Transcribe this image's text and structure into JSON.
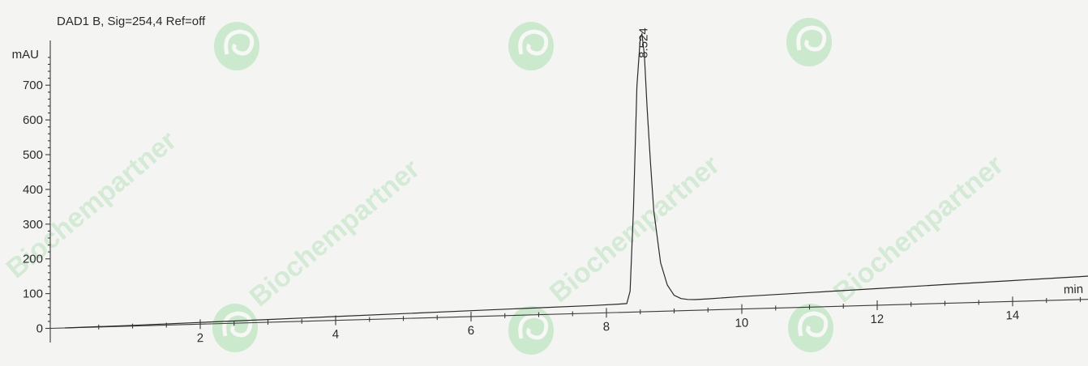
{
  "chart_data": {
    "type": "line",
    "title": "DAD1 B, Sig=254,4 Ref=off",
    "xlabel": "min",
    "ylabel": "mAU",
    "xlim": [
      0,
      15.3
    ],
    "ylim": [
      -30,
      810
    ],
    "x_ticks": [
      2,
      4,
      6,
      8,
      10,
      12,
      14
    ],
    "y_ticks": [
      0,
      100,
      200,
      300,
      400,
      500,
      600,
      700
    ],
    "series": [
      {
        "x": [
          0,
          1,
          2,
          3,
          4,
          5,
          6,
          7,
          7.8,
          8.2,
          8.3,
          8.35,
          8.4,
          8.45,
          8.5,
          8.524,
          8.56,
          8.6,
          8.65,
          8.7,
          8.8,
          8.9,
          9.0,
          9.1,
          9.2,
          9.3,
          9.5,
          10,
          11,
          12,
          13,
          14,
          15,
          15.3
        ],
        "y": [
          0,
          2,
          5,
          8,
          11,
          14,
          17,
          20,
          22,
          24,
          25,
          60,
          300,
          650,
          790,
          800,
          740,
          590,
          430,
          290,
          140,
          75,
          45,
          35,
          32,
          31,
          32,
          36,
          42,
          48,
          54,
          60,
          66,
          68
        ]
      }
    ],
    "peaks": [
      {
        "retention_time": "8.524",
        "x": 8.524,
        "y": 800
      }
    ],
    "grid": false,
    "legend": "none"
  },
  "watermarks": {
    "brand_text": "Biochempartner",
    "logo_icon": "spiral-logo-icon"
  }
}
